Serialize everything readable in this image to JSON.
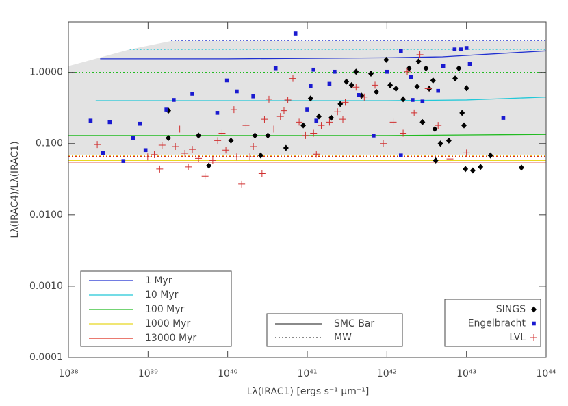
{
  "chart_data": {
    "type": "scatter",
    "x_label": "Lλ(IRAC1) [ergs s⁻¹ μm⁻¹]",
    "y_label": "Lλ(IRAC4)/Lλ(IRAC1)",
    "xlog": true,
    "ylog": true,
    "xlim": [
      1e+38,
      1e+44
    ],
    "ylim": [
      0.0001,
      5.1
    ],
    "xticks": [
      {
        "value": 1e+38,
        "label": "10³⁸"
      },
      {
        "value": 1e+39,
        "label": "10³⁹"
      },
      {
        "value": 1e+40,
        "label": "10⁴⁰"
      },
      {
        "value": 1e+41,
        "label": "10⁴¹"
      },
      {
        "value": 1e+42,
        "label": "10⁴²"
      },
      {
        "value": 1e+43,
        "label": "10⁴³"
      },
      {
        "value": 1e+44,
        "label": "10⁴⁴"
      }
    ],
    "yticks": [
      {
        "value": 0.0001,
        "label": "0.0001"
      },
      {
        "value": 0.001,
        "label": "0.0010"
      },
      {
        "value": 0.01,
        "label": "0.0100"
      },
      {
        "value": 0.1,
        "label": "0.100"
      },
      {
        "value": 1,
        "label": "1.0000"
      }
    ],
    "band": {
      "color": "#e3e3e3",
      "x": [
        1e+38,
        5.9e+38,
        1.95e+39,
        1e+44
      ],
      "upper": [
        1.22,
        2.1,
        2.75,
        2.75
      ],
      "lower": [
        0.07,
        0.07,
        0.07,
        0.07
      ]
    },
    "line_styles": [
      {
        "name": "SMC Bar",
        "dash": "solid"
      },
      {
        "name": "MW",
        "dash": "dotted"
      }
    ],
    "tracks": [
      {
        "name": "1 Myr",
        "color": "#1f2fd0",
        "smc_x": [
          2.5e+38,
          1e+40,
          1e+42,
          5e+42,
          1e+44
        ],
        "smc": [
          1.55,
          1.55,
          1.6,
          1.65,
          2.0
        ],
        "mw_x": [
          1.95e+39,
          1e+44
        ],
        "mw": [
          2.8,
          2.8
        ]
      },
      {
        "name": "10 Myr",
        "color": "#22c8d8",
        "smc_x": [
          2.2e+38,
          1e+40,
          1e+42,
          1e+43,
          1e+44
        ],
        "smc": [
          0.4,
          0.4,
          0.4,
          0.41,
          0.45
        ],
        "mw_x": [
          5.9e+38,
          1e+44
        ],
        "mw": [
          2.1,
          2.1
        ]
      },
      {
        "name": "100 Myr",
        "color": "#22bb22",
        "smc_x": [
          1e+38,
          1e+40,
          1e+42,
          1e+44
        ],
        "smc": [
          0.13,
          0.13,
          0.13,
          0.135
        ],
        "mw_x": [
          1e+38,
          1e+44
        ],
        "mw": [
          1.0,
          1.0
        ]
      },
      {
        "name": "1000 Myr",
        "color": "#e8d820",
        "smc_x": [
          1e+38,
          1e+44
        ],
        "smc": [
          0.058,
          0.058
        ],
        "mw_x": [
          1e+38,
          1e+44
        ],
        "mw": [
          0.068,
          0.068
        ]
      },
      {
        "name": "13000 Myr",
        "color": "#dd2a1a",
        "smc_x": [
          1e+38,
          1e+44
        ],
        "smc": [
          0.055,
          0.055
        ],
        "mw_x": [
          1e+38,
          1e+44
        ],
        "mw": [
          0.066,
          0.066
        ]
      }
    ],
    "series": [
      {
        "name": "SINGS",
        "marker": "diamond",
        "color": "#000000",
        "x": [
          1.8e+39,
          1.8e+39,
          4.3e+39,
          5.8e+39,
          1.1e+40,
          2.2e+40,
          2.6e+40,
          3.2e+40,
          5.4e+40,
          8.9e+40,
          1.1e+41,
          1.4e+41,
          2e+41,
          2.6e+41,
          3.1e+41,
          3.6e+41,
          4.8e+41,
          6.3e+41,
          7.4e+41,
          9.8e+41,
          1.1e+42,
          1.3e+42,
          1.6e+42,
          1.9e+42,
          2.4e+42,
          2.8e+42,
          3.1e+42,
          3.4e+42,
          3.8e+42,
          4e+42,
          4.7e+42,
          6e+42,
          7.2e+42,
          8e+42,
          8.8e+42,
          9.7e+42,
          1.2e+43,
          9.3e+42,
          1e+43,
          1.5e+43,
          2e+43,
          4.9e+43,
          4.1e+42,
          2.5e+42,
          4.1e+41
        ],
        "values": [
          0.29,
          0.12,
          0.13,
          0.049,
          0.11,
          0.13,
          0.068,
          0.13,
          0.087,
          0.18,
          0.43,
          0.24,
          0.23,
          0.36,
          0.74,
          0.66,
          0.47,
          0.96,
          0.53,
          1.5,
          0.66,
          0.59,
          0.42,
          1.14,
          0.63,
          0.2,
          1.14,
          0.59,
          0.77,
          0.16,
          0.1,
          0.11,
          0.82,
          1.14,
          0.27,
          0.044,
          0.042,
          0.18,
          0.6,
          0.047,
          0.068,
          0.046,
          0.058,
          1.42,
          1.02
        ]
      },
      {
        "name": "Engelbracht",
        "marker": "square",
        "color": "#1a1ad0",
        "x": [
          1.9e+38,
          3.3e+38,
          2.7e+38,
          4.9e+38,
          6.5e+38,
          9.3e+38,
          7.9e+38,
          1.7e+39,
          2.1e+39,
          3.6e+39,
          7.4e+39,
          9.8e+39,
          1.3e+40,
          2.1e+40,
          4e+40,
          7.1e+40,
          1.1e+41,
          1.2e+41,
          1.3e+41,
          1.9e+41,
          2.2e+41,
          4.4e+41,
          6.8e+41,
          1e+42,
          1.5e+42,
          2e+42,
          2.1e+42,
          2.8e+42,
          4.4e+42,
          5.1e+42,
          7.1e+42,
          8.5e+42,
          1e+43,
          1.1e+43,
          2.9e+43,
          1.5e+42,
          1e+41
        ],
        "values": [
          0.21,
          0.2,
          0.074,
          0.057,
          0.12,
          0.081,
          0.19,
          0.3,
          0.41,
          0.5,
          0.27,
          0.77,
          0.54,
          0.46,
          1.14,
          3.5,
          0.64,
          1.09,
          0.21,
          0.69,
          1.02,
          0.48,
          0.13,
          1.02,
          2.0,
          0.86,
          0.41,
          0.39,
          0.55,
          1.22,
          2.1,
          2.1,
          2.2,
          1.3,
          0.23,
          0.068,
          0.3
        ]
      },
      {
        "name": "LVL",
        "marker": "plus",
        "color": "#d03030",
        "x": [
          2.3e+38,
          1.4e+39,
          1.5e+39,
          2.2e+39,
          2.9e+39,
          4.3e+39,
          5.2e+39,
          6.5e+39,
          7.5e+39,
          9.5e+39,
          1.3e+40,
          1.5e+40,
          1.2e+40,
          1.7e+40,
          2.1e+40,
          2.7e+40,
          2.9e+40,
          3.8e+40,
          4.6e+40,
          5.7e+40,
          6.6e+40,
          7.9e+40,
          9.5e+40,
          1.3e+41,
          1.5e+41,
          1.9e+41,
          2.4e+41,
          3e+41,
          4.1e+41,
          5.2e+41,
          7.1e+41,
          9e+41,
          1.2e+42,
          1.6e+42,
          2.2e+42,
          2.6e+42,
          3.3e+42,
          4.4e+42,
          6.2e+42,
          1e+43,
          1.8e+42,
          9.9e+38,
          1.2e+39,
          2.5e+39,
          3.6e+39,
          8.5e+39,
          3.3e+40,
          5.1e+40,
          1.2e+41,
          2.8e+41,
          1.9e+40,
          3.2e+39
        ],
        "values": [
          0.097,
          0.044,
          0.095,
          0.091,
          0.073,
          0.062,
          0.035,
          0.058,
          0.11,
          0.081,
          0.065,
          0.027,
          0.3,
          0.18,
          0.091,
          0.038,
          0.22,
          0.16,
          0.24,
          0.41,
          0.82,
          0.2,
          0.13,
          0.071,
          0.18,
          0.2,
          0.28,
          0.38,
          0.62,
          0.45,
          0.66,
          0.1,
          0.2,
          0.14,
          0.27,
          1.77,
          0.59,
          0.18,
          0.061,
          0.074,
          1.02,
          0.065,
          0.07,
          0.16,
          0.083,
          0.14,
          0.42,
          0.29,
          0.14,
          0.22,
          0.065,
          0.047
        ]
      }
    ]
  }
}
